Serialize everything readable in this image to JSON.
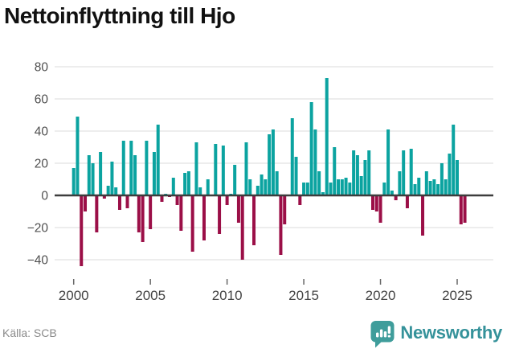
{
  "title": "Nettoinflyttning till Hjo",
  "source": "Källa: SCB",
  "brand": {
    "name": "Newsworthy",
    "icon": "bar-chart-speech-bubble-icon"
  },
  "colors": {
    "positive": "#0ba3a0",
    "negative": "#9b0f47",
    "grid": "#e7e7e7",
    "zero_line": "#3d3d3d",
    "ytick_text": "#4f4f4f",
    "xtick_text": "#444444",
    "tick_mark": "#666666",
    "title_text": "#111111",
    "source_text": "#8a8a8a",
    "brand_text": "#35929a",
    "brand_icon": "#3f9d9b"
  },
  "chart_data": {
    "type": "bar",
    "title": "Nettoinflyttning till Hjo",
    "x_start": "2000-Q1",
    "frequency": "quarterly",
    "x_tick_years": [
      2000,
      2005,
      2010,
      2015,
      2020,
      2025
    ],
    "yticks": [
      80,
      60,
      40,
      20,
      0,
      -20,
      -40
    ],
    "ylim": [
      -50,
      85
    ],
    "grid": true,
    "legend": false,
    "ylabel": "",
    "xlabel": "",
    "values": [
      17,
      49,
      -44,
      -10,
      25,
      20,
      -23,
      27,
      -2,
      6,
      21,
      5,
      -9,
      34,
      -8,
      34,
      25,
      -23,
      -29,
      34,
      -21,
      27,
      44,
      -4,
      1,
      -1,
      11,
      -6,
      -22,
      14,
      15,
      -35,
      33,
      5,
      -28,
      10,
      0,
      32,
      -24,
      31,
      -6,
      1,
      19,
      -17,
      -40,
      33,
      10,
      -31,
      6,
      13,
      10,
      38,
      41,
      15,
      -37,
      -18,
      0,
      48,
      24,
      -6,
      8,
      8,
      58,
      41,
      15,
      2,
      73,
      8,
      30,
      10,
      10,
      11,
      8,
      28,
      25,
      12,
      22,
      28,
      -9,
      -10,
      -17,
      8,
      41,
      3,
      -3,
      15,
      28,
      -8,
      29,
      7,
      11,
      -25,
      15,
      9,
      10,
      7,
      20,
      10,
      26,
      44,
      22,
      -18,
      -17
    ]
  }
}
